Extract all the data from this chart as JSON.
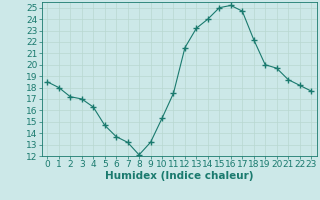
{
  "title": "",
  "xlabel": "Humidex (Indice chaleur)",
  "ylabel": "",
  "x_values": [
    0,
    1,
    2,
    3,
    4,
    5,
    6,
    7,
    8,
    9,
    10,
    11,
    12,
    13,
    14,
    15,
    16,
    17,
    18,
    19,
    20,
    21,
    22,
    23
  ],
  "y_values": [
    18.5,
    18.0,
    17.2,
    17.0,
    16.3,
    14.7,
    13.7,
    13.2,
    12.1,
    13.2,
    15.3,
    17.5,
    21.5,
    23.2,
    24.0,
    25.0,
    25.2,
    24.7,
    22.2,
    20.0,
    19.7,
    18.7,
    18.2,
    17.7
  ],
  "line_color": "#1a7a6e",
  "marker": "+",
  "marker_size": 4,
  "bg_color": "#cce8e8",
  "grid_color": "#b8d8d0",
  "tick_color": "#1a7a6e",
  "label_color": "#1a7a6e",
  "ylim": [
    12,
    25.5
  ],
  "yticks": [
    12,
    13,
    14,
    15,
    16,
    17,
    18,
    19,
    20,
    21,
    22,
    23,
    24,
    25
  ],
  "xticks": [
    0,
    1,
    2,
    3,
    4,
    5,
    6,
    7,
    8,
    9,
    10,
    11,
    12,
    13,
    14,
    15,
    16,
    17,
    18,
    19,
    20,
    21,
    22,
    23
  ],
  "font_size": 6.5,
  "xlabel_fontsize": 7.5
}
